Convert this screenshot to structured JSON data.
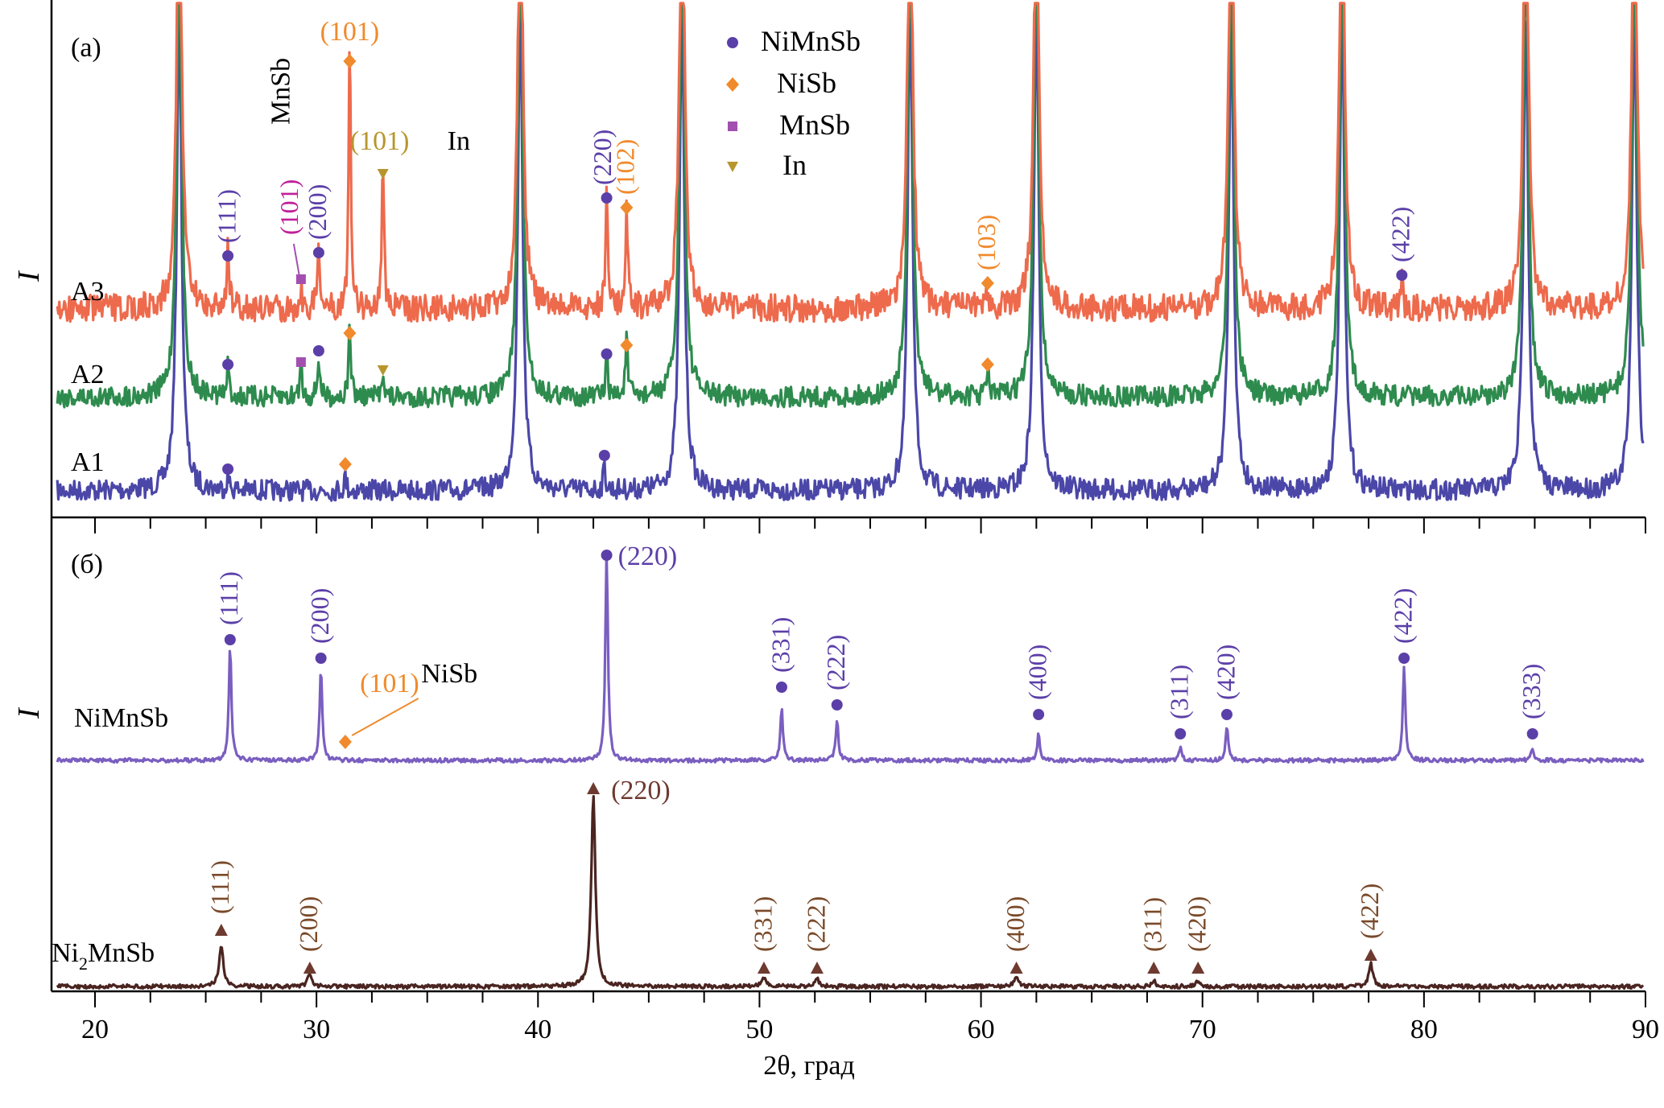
{
  "chart_data": [
    {
      "panel": "(a)",
      "type": "line",
      "title": "(a)",
      "xlabel": "2θ, град",
      "ylabel": "I",
      "xlim": [
        18,
        90
      ],
      "x_ticks": [
        20,
        30,
        40,
        50,
        60,
        70,
        80,
        90
      ],
      "x_minor_step": 2.5,
      "legend": {
        "placement": "top-center",
        "entries": [
          {
            "label": "NiMnSb",
            "marker": "circle",
            "color": "#5b3fa8"
          },
          {
            "label": "NiSb",
            "marker": "diamond",
            "color": "#f08a2c"
          },
          {
            "label": "MnSb",
            "marker": "square",
            "color": "#a24fb0"
          },
          {
            "label": "In",
            "marker": "triangle-down",
            "color": "#b8962e"
          }
        ]
      },
      "main_peaks": [
        23.8,
        39.2,
        46.5,
        56.8,
        62.5,
        71.3,
        76.3,
        84.6,
        89.5
      ],
      "series": [
        {
          "name": "A3",
          "color": "#ee6a4c",
          "minor_peaks": [
            {
              "x": 26.0,
              "h": 0.35,
              "phase": "NiMnSb",
              "hkl": "(111)"
            },
            {
              "x": 29.3,
              "h": 0.1,
              "phase": "MnSb",
              "hkl": "(101)"
            },
            {
              "x": 30.1,
              "h": 0.35,
              "phase": "NiMnSb",
              "hkl": "(200)"
            },
            {
              "x": 31.5,
              "h": 1.3,
              "phase": "NiSb",
              "hkl": "(101)"
            },
            {
              "x": 33.0,
              "h": 0.75,
              "phase": "In",
              "hkl": "(101)"
            },
            {
              "x": 43.1,
              "h": 0.6,
              "phase": "NiMnSb",
              "hkl": "(220)"
            },
            {
              "x": 44.0,
              "h": 0.55,
              "phase": "NiSb",
              "hkl": "(102)"
            },
            {
              "x": 60.3,
              "h": 0.1,
              "phase": "NiSb",
              "hkl": "(103)"
            },
            {
              "x": 79.0,
              "h": 0.12,
              "phase": "NiMnSb",
              "hkl": "(422)"
            }
          ]
        },
        {
          "name": "A2",
          "color": "#2e8b4e",
          "minor_peaks": [
            {
              "x": 26.0,
              "h": 0.15,
              "phase": "NiMnSb"
            },
            {
              "x": 29.3,
              "h": 0.18,
              "phase": "MnSb"
            },
            {
              "x": 30.1,
              "h": 0.2,
              "phase": "NiMnSb"
            },
            {
              "x": 31.5,
              "h": 0.35,
              "phase": "NiSb"
            },
            {
              "x": 33.0,
              "h": 0.15,
              "phase": "In"
            },
            {
              "x": 43.1,
              "h": 0.2,
              "phase": "NiMnSb"
            },
            {
              "x": 44.0,
              "h": 0.3,
              "phase": "NiSb"
            },
            {
              "x": 60.3,
              "h": 0.15,
              "phase": "NiSb"
            }
          ]
        },
        {
          "name": "A1",
          "color": "#4b47a8",
          "minor_peaks": [
            {
              "x": 26.0,
              "h": 0.07,
              "phase": "NiMnSb"
            },
            {
              "x": 31.3,
              "h": 0.07,
              "phase": "NiSb"
            },
            {
              "x": 43.0,
              "h": 0.12,
              "phase": "NiMnSb"
            }
          ]
        }
      ],
      "annotations": [
        {
          "text": "(101)",
          "color": "#f08a2c",
          "x": 31.5,
          "orientation": "horizontal"
        },
        {
          "text": "MnSb",
          "color": "#000000",
          "x": 28.4,
          "orientation": "vertical"
        },
        {
          "text": "(101)",
          "color": "#b8962e",
          "x": 33.0,
          "suffix": "In",
          "orientation": "horizontal"
        },
        {
          "text": "(111)",
          "color": "#5b3fa8",
          "x": 26.0,
          "orientation": "vertical"
        },
        {
          "text": "(101)",
          "color": "#c0209a",
          "x": 28.6,
          "orientation": "vertical"
        },
        {
          "text": "(200)",
          "color": "#5b3fa8",
          "x": 30.1,
          "orientation": "vertical"
        },
        {
          "text": "(220)",
          "color": "#5b3fa8",
          "x": 43.1,
          "orientation": "vertical"
        },
        {
          "text": "(102)",
          "color": "#f08a2c",
          "x": 44.0,
          "orientation": "vertical"
        },
        {
          "text": "(103)",
          "color": "#f08a2c",
          "x": 60.3,
          "orientation": "vertical"
        },
        {
          "text": "(422)",
          "color": "#5b3fa8",
          "x": 79.0,
          "orientation": "vertical"
        }
      ]
    },
    {
      "panel": "(б)",
      "type": "line",
      "title": "(б)",
      "xlabel": "2θ, град",
      "ylabel": "I",
      "xlim": [
        18,
        90
      ],
      "x_ticks": [
        20,
        30,
        40,
        50,
        60,
        70,
        80,
        90
      ],
      "series": [
        {
          "name": "NiMnSb",
          "color": "#7a5ec0",
          "marker_color": "#5b3fa8",
          "peaks": [
            {
              "x": 26.1,
              "h": 0.55,
              "hkl": "(111)"
            },
            {
              "x": 30.2,
              "h": 0.45,
              "hkl": "(200)"
            },
            {
              "x": 43.1,
              "h": 1.0,
              "hkl": "(220)"
            },
            {
              "x": 51.0,
              "h": 0.25,
              "hkl": "(331)"
            },
            {
              "x": 53.5,
              "h": 0.2,
              "hkl": "(222)"
            },
            {
              "x": 62.6,
              "h": 0.13,
              "hkl": "(400)"
            },
            {
              "x": 69.0,
              "h": 0.07,
              "hkl": "(311)"
            },
            {
              "x": 71.1,
              "h": 0.17,
              "hkl": "(420)"
            },
            {
              "x": 79.1,
              "h": 0.45,
              "hkl": "(422)"
            },
            {
              "x": 84.9,
              "h": 0.06,
              "hkl": "(333)"
            }
          ],
          "extra": {
            "x": 31.3,
            "phase": "NiSb",
            "hkl": "(101)",
            "label_suffix": "NiSb",
            "color": "#f08a2c"
          }
        },
        {
          "name": "Ni2MnSb",
          "color": "#4a2420",
          "marker_color": "#6e3a30",
          "peaks": [
            {
              "x": 25.7,
              "h": 0.22,
              "hkl": "(111)"
            },
            {
              "x": 29.7,
              "h": 0.07,
              "hkl": "(200)"
            },
            {
              "x": 42.5,
              "h": 1.0,
              "hkl": "(220)"
            },
            {
              "x": 50.2,
              "h": 0.05,
              "hkl": "(331)"
            },
            {
              "x": 52.6,
              "h": 0.04,
              "hkl": "(222)"
            },
            {
              "x": 61.6,
              "h": 0.06,
              "hkl": "(400)"
            },
            {
              "x": 67.8,
              "h": 0.03,
              "hkl": "(311)"
            },
            {
              "x": 69.8,
              "h": 0.03,
              "hkl": "(420)"
            },
            {
              "x": 77.6,
              "h": 0.12,
              "hkl": "(422)"
            }
          ]
        }
      ]
    }
  ],
  "labels": {
    "panel_a": "(a)",
    "panel_b": "(б)",
    "y_axis_a": "I",
    "y_axis_b": "I",
    "x_axis_title": "2θ, град",
    "a3": "A3",
    "a2": "A2",
    "a1": "A1",
    "nimnsb": "NiMnSb",
    "ni2mnsb_main": "Ni",
    "ni2mnsb_sub": "2",
    "ni2mnsb_rest": "MnSb",
    "mnsb_vertical": "MnSb",
    "in_label": "In",
    "nisb_label": "NiSb"
  }
}
